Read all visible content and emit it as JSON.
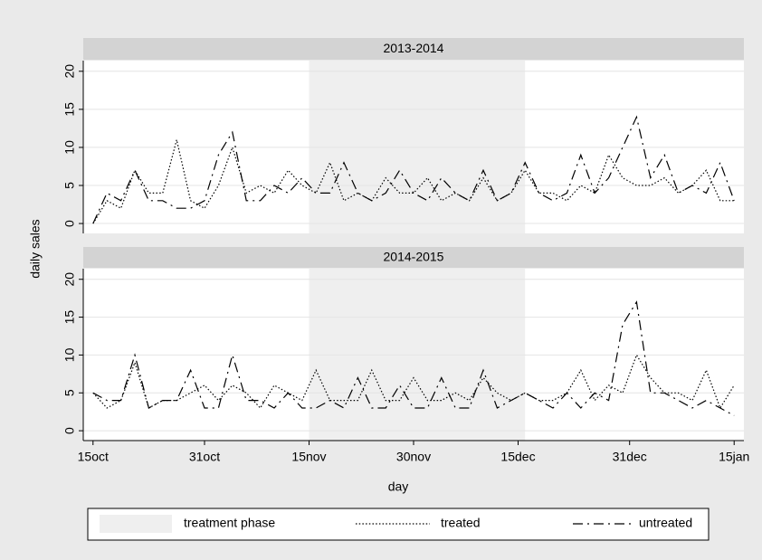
{
  "chart_data": {
    "type": "line",
    "xlabel": "day",
    "ylabel": "daily sales",
    "x": [
      0,
      2,
      4,
      6,
      8,
      10,
      12,
      14,
      16,
      18,
      20,
      22,
      24,
      26,
      28,
      30,
      32,
      34,
      36,
      38,
      40,
      42,
      44,
      46,
      48,
      50,
      52,
      54,
      56,
      58,
      60,
      62,
      64,
      66,
      68,
      70,
      72,
      74,
      76,
      78,
      80,
      82,
      84,
      86,
      88,
      90,
      92
    ],
    "xlim": [
      -1.4,
      93.4
    ],
    "xticks": [
      {
        "value": 0,
        "label": "15oct"
      },
      {
        "value": 16,
        "label": "31oct"
      },
      {
        "value": 31,
        "label": "15nov"
      },
      {
        "value": 46,
        "label": "30nov"
      },
      {
        "value": 61,
        "label": "15dec"
      },
      {
        "value": 77,
        "label": "31dec"
      },
      {
        "value": 92,
        "label": "15jan"
      }
    ],
    "ylim": [
      -1.3,
      21.4
    ],
    "yticks": [
      0,
      5,
      10,
      15,
      20
    ],
    "grid": true,
    "treatment_phase": {
      "name": "treatment phase",
      "range": [
        31,
        62
      ],
      "color": "#efefef"
    },
    "panels": [
      {
        "title": "2013-2014",
        "series": [
          {
            "name": "treated",
            "color": "#000000",
            "style": "dotted",
            "values": [
              0,
              3,
              2,
              7,
              4,
              4,
              11,
              3,
              2,
              5,
              10,
              4,
              5,
              4,
              7,
              5,
              4,
              8,
              3,
              4,
              3,
              6,
              4,
              4,
              6,
              3,
              4,
              3,
              6,
              3,
              4,
              7,
              4,
              4,
              3,
              5,
              4,
              9,
              6,
              5,
              5,
              6,
              4,
              5,
              7,
              3,
              3
            ]
          },
          {
            "name": "untreated",
            "color": "#000000",
            "style": "dashdot",
            "values": [
              0,
              4,
              3,
              7,
              3,
              3,
              2,
              2,
              3,
              9,
              12,
              3,
              3,
              5,
              4,
              6,
              4,
              4,
              8,
              4,
              3,
              4,
              7,
              4,
              3,
              6,
              4,
              3,
              7,
              3,
              4,
              8,
              4,
              3,
              4,
              9,
              4,
              6,
              10,
              14,
              6,
              9,
              4,
              5,
              4,
              8,
              3
            ]
          }
        ]
      },
      {
        "title": "2014-2015",
        "series": [
          {
            "name": "treated",
            "color": "#000000",
            "style": "dotted",
            "values": [
              5,
              3,
              4,
              9,
              3,
              4,
              4,
              5,
              6,
              4,
              6,
              5,
              3,
              6,
              5,
              4,
              8,
              4,
              4,
              4,
              8,
              4,
              4,
              7,
              4,
              4,
              5,
              4,
              7,
              5,
              4,
              5,
              4,
              4,
              5,
              8,
              4,
              6,
              5,
              10,
              7,
              5,
              5,
              4,
              8,
              3,
              6
            ]
          },
          {
            "name": "untreated",
            "color": "#000000",
            "style": "dashdot",
            "values": [
              5,
              4,
              4,
              10,
              3,
              4,
              4,
              8,
              3,
              3,
              10,
              4,
              4,
              3,
              5,
              3,
              3,
              4,
              3,
              7,
              3,
              3,
              6,
              3,
              3,
              7,
              3,
              3,
              8,
              3,
              4,
              5,
              4,
              3,
              5,
              3,
              5,
              4,
              14,
              17,
              5,
              5,
              4,
              3,
              4,
              3,
              2
            ]
          }
        ]
      }
    ]
  }
}
